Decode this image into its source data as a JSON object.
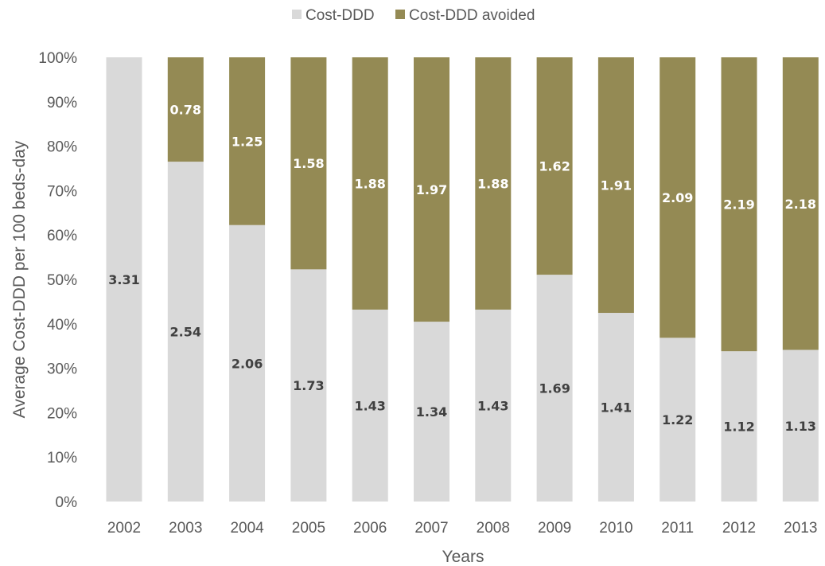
{
  "chart_data": {
    "type": "bar",
    "stacked": "percent",
    "title": "",
    "xlabel": "Years",
    "ylabel": "Average Cost-DDD per 100 beds-day",
    "ylim": [
      0,
      100
    ],
    "ytick_labels": [
      "0%",
      "10%",
      "20%",
      "30%",
      "40%",
      "50%",
      "60%",
      "70%",
      "80%",
      "90%",
      "100%"
    ],
    "categories": [
      "2002",
      "2003",
      "2004",
      "2005",
      "2006",
      "2007",
      "2008",
      "2009",
      "2010",
      "2011",
      "2012",
      "2013"
    ],
    "series": [
      {
        "name": "Cost-DDD",
        "color": "#d9d9d9",
        "label_color": "#404040",
        "values": [
          3.31,
          2.54,
          2.06,
          1.73,
          1.43,
          1.34,
          1.43,
          1.69,
          1.41,
          1.22,
          1.12,
          1.13
        ],
        "labels": [
          "3.31",
          "2.54",
          "2.06",
          "1.73",
          "1.43",
          "1.34",
          "1.43",
          "1.69",
          "1.41",
          "1.22",
          "1.12",
          "1.13"
        ]
      },
      {
        "name": "Cost-DDD avoided",
        "color": "#948a54",
        "label_color": "#ffffff",
        "values": [
          0,
          0.78,
          1.25,
          1.58,
          1.88,
          1.97,
          1.88,
          1.62,
          1.91,
          2.09,
          2.19,
          2.18
        ],
        "labels": [
          "",
          "0.78",
          "1.25",
          "1.58",
          "1.88",
          "1.97",
          "1.88",
          "1.62",
          "1.91",
          "2.09",
          "2.19",
          "2.18"
        ]
      }
    ],
    "legend": "top-center",
    "grid": false
  }
}
